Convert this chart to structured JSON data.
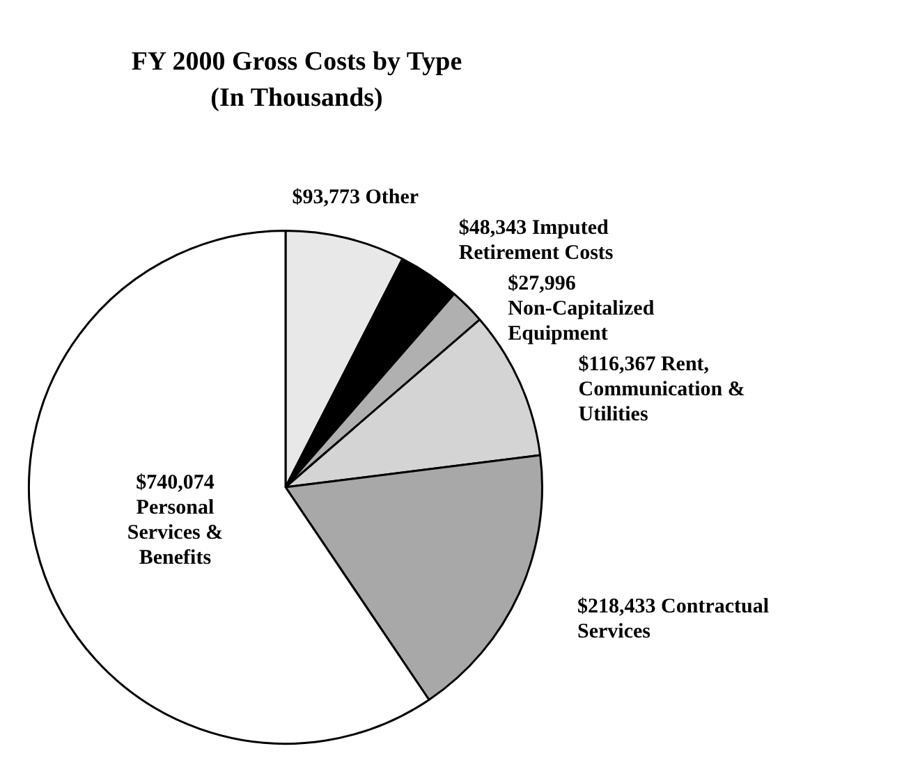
{
  "chart_data": {
    "type": "pie",
    "title": "FY 2000 Gross Costs by Type",
    "subtitle": "(In Thousands)",
    "categories": [
      "Other",
      "Imputed Retirement Costs",
      "Non-Capitalized Equipment",
      "Rent, Communication & Utilities",
      "Contractual Services",
      "Personal Services & Benefits"
    ],
    "values": [
      93773,
      48343,
      27996,
      116367,
      218433,
      740074
    ],
    "value_labels": [
      "$93,773",
      "$48,343",
      "$27,996",
      "$116,367",
      "$218,433",
      "$740,074"
    ],
    "colors": [
      "#e8e8e8",
      "#000000",
      "#b0b0b0",
      "#d4d4d4",
      "#a8a8a8",
      "#ffffff"
    ]
  }
}
